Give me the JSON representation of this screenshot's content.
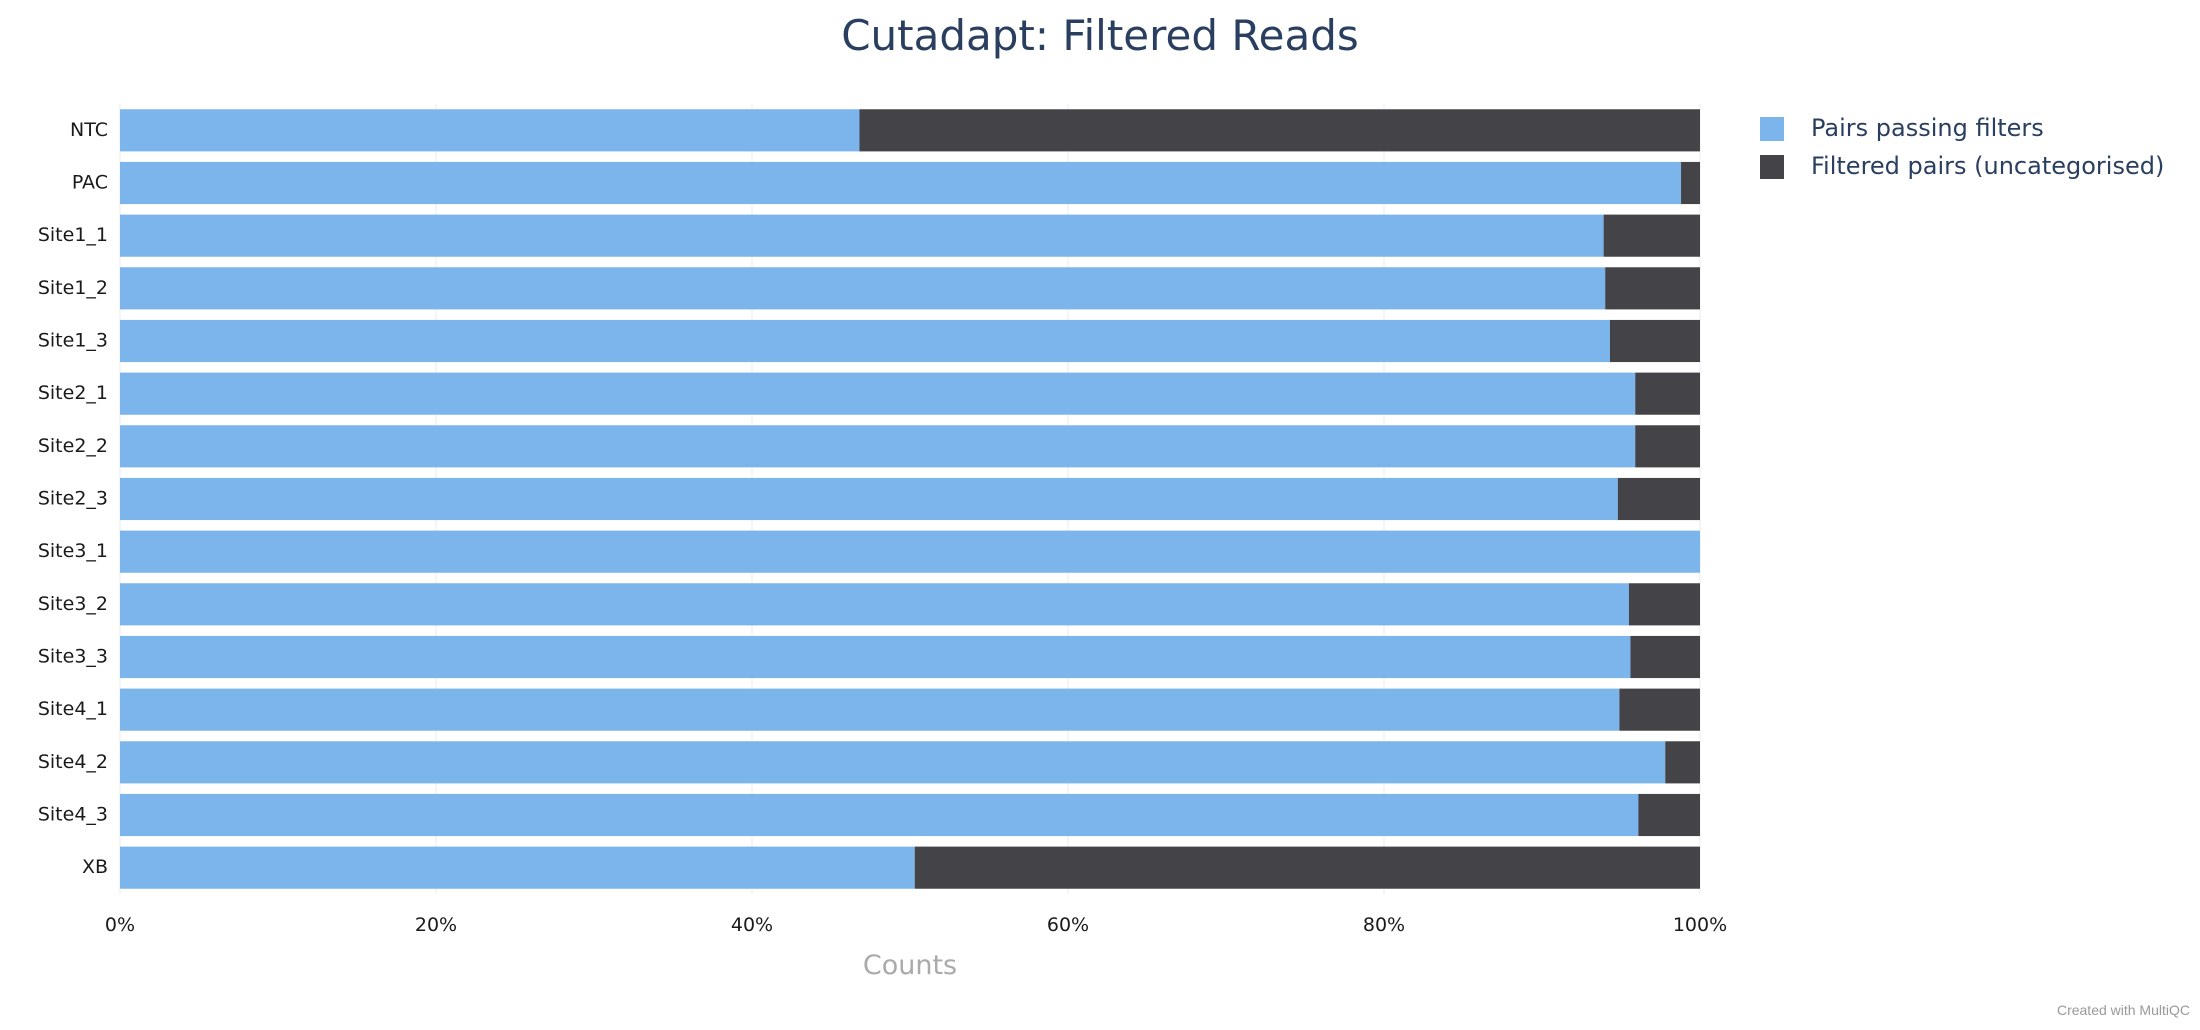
{
  "chart_data": {
    "type": "bar",
    "orientation": "horizontal",
    "stacked": "percent",
    "title": "Cutadapt: Filtered Reads",
    "xlabel": "Counts",
    "ylabel": "",
    "xlim": [
      0,
      100
    ],
    "x_ticks": [
      "0%",
      "20%",
      "40%",
      "60%",
      "80%",
      "100%"
    ],
    "categories": [
      "NTC",
      "PAC",
      "Site1_1",
      "Site1_2",
      "Site1_3",
      "Site2_1",
      "Site2_2",
      "Site2_3",
      "Site3_1",
      "Site3_2",
      "Site3_3",
      "Site4_1",
      "Site4_2",
      "Site4_3",
      "XB"
    ],
    "series": [
      {
        "name": "Pairs passing filters",
        "color": "#7cb5ec",
        "values": [
          46.8,
          98.8,
          93.9,
          94.0,
          94.3,
          95.9,
          95.9,
          94.8,
          100.0,
          95.5,
          95.6,
          94.9,
          97.8,
          96.1,
          50.3
        ]
      },
      {
        "name": "Filtered pairs (uncategorised)",
        "color": "#434348",
        "values": [
          53.2,
          1.2,
          6.1,
          6.0,
          5.7,
          4.1,
          4.1,
          5.2,
          0.0,
          4.5,
          4.4,
          5.1,
          2.2,
          3.9,
          49.7
        ]
      }
    ],
    "grid": true,
    "legend_position": "top-right"
  },
  "footer": {
    "credit": "Created with MultiQC"
  }
}
